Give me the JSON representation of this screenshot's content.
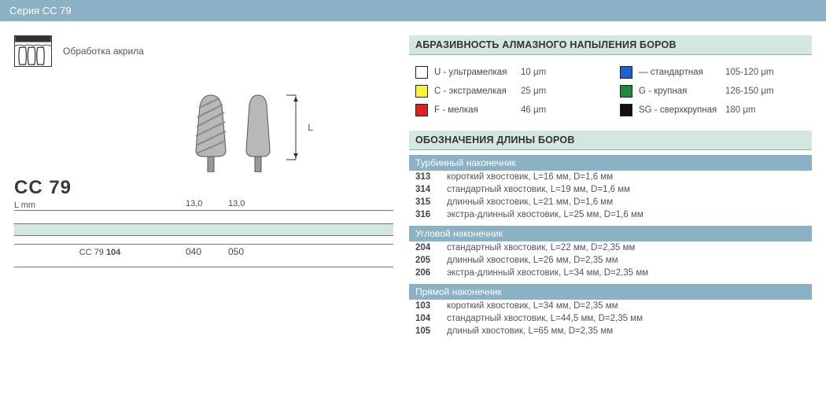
{
  "series_bar": "Серия CC 79",
  "left": {
    "application_label": "Обработка акрила",
    "model": "CC 79",
    "lmm_label": "L mm",
    "length_values": [
      "13,0",
      "13,0"
    ],
    "code_label_prefix": "CC 79 ",
    "code_label_bold": "104",
    "size_codes": [
      "040",
      "050"
    ],
    "l_bracket_letter": "L",
    "bur_colors": {
      "fill": "#b8b8b8",
      "stroke": "#555555",
      "shaft": "#999999",
      "stripe": "#888888"
    },
    "divider_green": "#d3e7de"
  },
  "right": {
    "abrasive_header": "АБРАЗИВНОСТЬ АЛМАЗНОГО НАПЫЛЕНИЯ БОРОВ",
    "abrasive_items": [
      {
        "color": "#ffffff",
        "code": "U - ультрамелкая",
        "value": "10 μm"
      },
      {
        "color": "#1f5fd6",
        "code": "— стандартная",
        "value": "105-120 μm"
      },
      {
        "color": "#fff23a",
        "code": "C - экстрамелкая",
        "value": "25 μm"
      },
      {
        "color": "#1f8a3b",
        "code": "G - крупная",
        "value": "126-150 μm"
      },
      {
        "color": "#e02020",
        "code": "F - мелкая",
        "value": "46 μm"
      },
      {
        "color": "#111111",
        "code": "SG - сверхкрупная",
        "value": "180 μm"
      }
    ],
    "length_header": "ОБОЗНАЧЕНИЯ ДЛИНЫ БОРОВ",
    "groups": [
      {
        "title": "Турбинный наконечник",
        "rows": [
          {
            "code": "313",
            "desc": "короткий хвостовик, L=16 мм, D=1,6 мм"
          },
          {
            "code": "314",
            "desc": "стандартный хвостовик, L=19 мм, D=1,6 мм"
          },
          {
            "code": "315",
            "desc": "длинный хвостовик, L=21 мм, D=1,6 мм"
          },
          {
            "code": "316",
            "desc": "экстра-длинный хвостовик, L=25 мм, D=1,6 мм"
          }
        ]
      },
      {
        "title": "Угловой наконечник",
        "rows": [
          {
            "code": "204",
            "desc": "стандартный хвостовик, L=22 мм, D=2,35 мм"
          },
          {
            "code": "205",
            "desc": "длинный хвостовик, L=26 мм, D=2,35 мм"
          },
          {
            "code": "206",
            "desc": "экстра-длинный хвостовик, L=34 мм, D=2,35 мм"
          }
        ]
      },
      {
        "title": "Прямой наконечник",
        "rows": [
          {
            "code": "103",
            "desc": "короткий хвостовик, L=34 мм, D=2,35 мм"
          },
          {
            "code": "104",
            "desc": "стандартный хвостовик, L=44,5 мм, D=2,35 мм"
          },
          {
            "code": "105",
            "desc": "длиный хвостовик, L=65 мм, D=2,35 мм"
          }
        ]
      }
    ]
  },
  "colors": {
    "series_bar_bg": "#8ab1c4",
    "section_green": "#d3e7de",
    "subhead_bg": "#8ab1c4",
    "text": "#4a4a4a"
  }
}
